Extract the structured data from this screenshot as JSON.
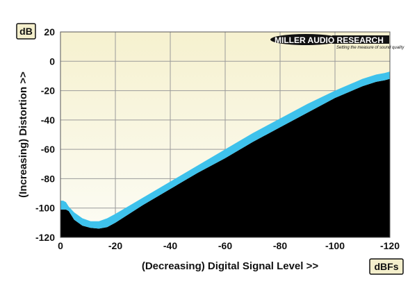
{
  "chart_data": {
    "type": "area",
    "ylabel": "(Increasing) Distortion >>",
    "xlabel": "(Decreasing) Digital Signal Level >>",
    "y_unit": "dB",
    "x_unit": "dBFs",
    "xlim": [
      0,
      -120
    ],
    "ylim": [
      -120,
      20
    ],
    "x_ticks": [
      0,
      -20,
      -40,
      -60,
      -80,
      -100,
      -120
    ],
    "y_ticks": [
      20,
      0,
      -20,
      -40,
      -60,
      -80,
      -100,
      -120
    ],
    "x_tick_labels": [
      "0",
      "-20",
      "-40",
      "-60",
      "-80",
      "-100",
      "-120"
    ],
    "y_tick_labels": [
      "20",
      "0",
      "-20",
      "-40",
      "-60",
      "-80",
      "-100",
      "-120"
    ],
    "grid": true,
    "series": [
      {
        "x": [
          0,
          -1,
          -2,
          -3,
          -5,
          -8,
          -11,
          -14,
          -17,
          -20,
          -30,
          -40,
          -50,
          -60,
          -70,
          -80,
          -90,
          -100,
          -110,
          -115,
          -118,
          -120
        ],
        "upper": [
          -95,
          -95,
          -96,
          -99,
          -103,
          -107,
          -109,
          -109,
          -107,
          -104,
          -93,
          -82,
          -71,
          -60,
          -49,
          -39,
          -29,
          -20,
          -12,
          -9,
          -8,
          -7
        ],
        "lower": [
          -101,
          -101,
          -101,
          -102,
          -108,
          -112,
          -113.5,
          -114,
          -113,
          -110,
          -98,
          -87,
          -76,
          -66,
          -55,
          -45,
          -35,
          -25,
          -17,
          -14,
          -13,
          -12
        ]
      }
    ],
    "colors": {
      "band": "#3ec2ec",
      "floor": "#000000",
      "background_top": "#f6f1cf",
      "background_bottom": "#fcfcf5"
    }
  },
  "logo": {
    "text": "MILLER AUDIO RESEARCH",
    "tagline": "Setting the measure of sound quality"
  }
}
